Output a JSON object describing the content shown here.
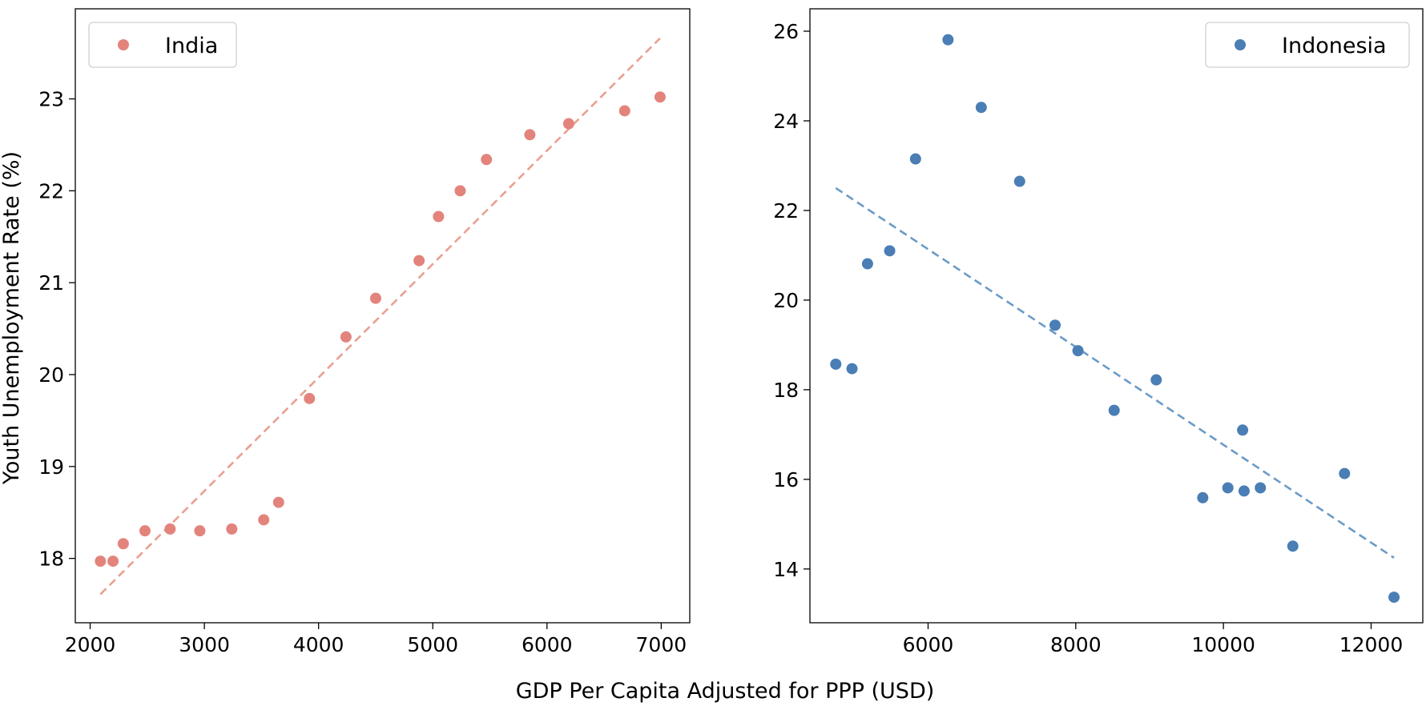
{
  "chart_data": {
    "xlabel": "GDP Per Capita Adjusted for PPP (USD)",
    "ylabel": "Youth Unemployment Rate (%)",
    "panels": [
      {
        "type": "scatter",
        "legend": "India",
        "legend_position": "top-left",
        "color": "#e3847c",
        "trend_color": "#e9a090",
        "xlim": [
          1870,
          7250
        ],
        "ylim": [
          17.3,
          23.98
        ],
        "xticks": [
          2000,
          3000,
          4000,
          5000,
          6000,
          7000
        ],
        "yticks": [
          18,
          19,
          20,
          21,
          22,
          23
        ],
        "points": [
          {
            "x": 2090,
            "y": 17.97
          },
          {
            "x": 2200,
            "y": 17.97
          },
          {
            "x": 2290,
            "y": 18.16
          },
          {
            "x": 2480,
            "y": 18.3
          },
          {
            "x": 2700,
            "y": 18.32
          },
          {
            "x": 2960,
            "y": 18.3
          },
          {
            "x": 3240,
            "y": 18.32
          },
          {
            "x": 3520,
            "y": 18.42
          },
          {
            "x": 3650,
            "y": 18.61
          },
          {
            "x": 3920,
            "y": 19.74
          },
          {
            "x": 4240,
            "y": 20.41
          },
          {
            "x": 4500,
            "y": 20.83
          },
          {
            "x": 4880,
            "y": 21.24
          },
          {
            "x": 5050,
            "y": 21.72
          },
          {
            "x": 5240,
            "y": 22.0
          },
          {
            "x": 5470,
            "y": 22.34
          },
          {
            "x": 5850,
            "y": 22.61
          },
          {
            "x": 6190,
            "y": 22.73
          },
          {
            "x": 6680,
            "y": 22.87
          },
          {
            "x": 6990,
            "y": 23.02
          }
        ],
        "trend": [
          {
            "x": 2090,
            "y": 17.61
          },
          {
            "x": 6990,
            "y": 23.66
          }
        ]
      },
      {
        "type": "scatter",
        "legend": "Indonesia",
        "legend_position": "top-right",
        "color": "#4a7eb5",
        "trend_color": "#6a9bc7",
        "xlim": [
          4400,
          12700
        ],
        "ylim": [
          12.8,
          26.5
        ],
        "xticks": [
          6000,
          8000,
          10000,
          12000
        ],
        "yticks": [
          14,
          16,
          18,
          20,
          22,
          24,
          26
        ],
        "points": [
          {
            "x": 4750,
            "y": 18.57
          },
          {
            "x": 4970,
            "y": 18.47
          },
          {
            "x": 5180,
            "y": 20.81
          },
          {
            "x": 5480,
            "y": 21.1
          },
          {
            "x": 5830,
            "y": 23.15
          },
          {
            "x": 6270,
            "y": 25.81
          },
          {
            "x": 6720,
            "y": 24.3
          },
          {
            "x": 7240,
            "y": 22.65
          },
          {
            "x": 7720,
            "y": 19.44
          },
          {
            "x": 8030,
            "y": 18.87
          },
          {
            "x": 8520,
            "y": 17.54
          },
          {
            "x": 9090,
            "y": 18.22
          },
          {
            "x": 9720,
            "y": 15.59
          },
          {
            "x": 10060,
            "y": 15.81
          },
          {
            "x": 10260,
            "y": 17.1
          },
          {
            "x": 10280,
            "y": 15.74
          },
          {
            "x": 10500,
            "y": 15.81
          },
          {
            "x": 10940,
            "y": 14.51
          },
          {
            "x": 11640,
            "y": 16.13
          },
          {
            "x": 12310,
            "y": 13.37
          }
        ],
        "trend": [
          {
            "x": 4750,
            "y": 22.5
          },
          {
            "x": 12310,
            "y": 14.25
          }
        ]
      }
    ]
  }
}
